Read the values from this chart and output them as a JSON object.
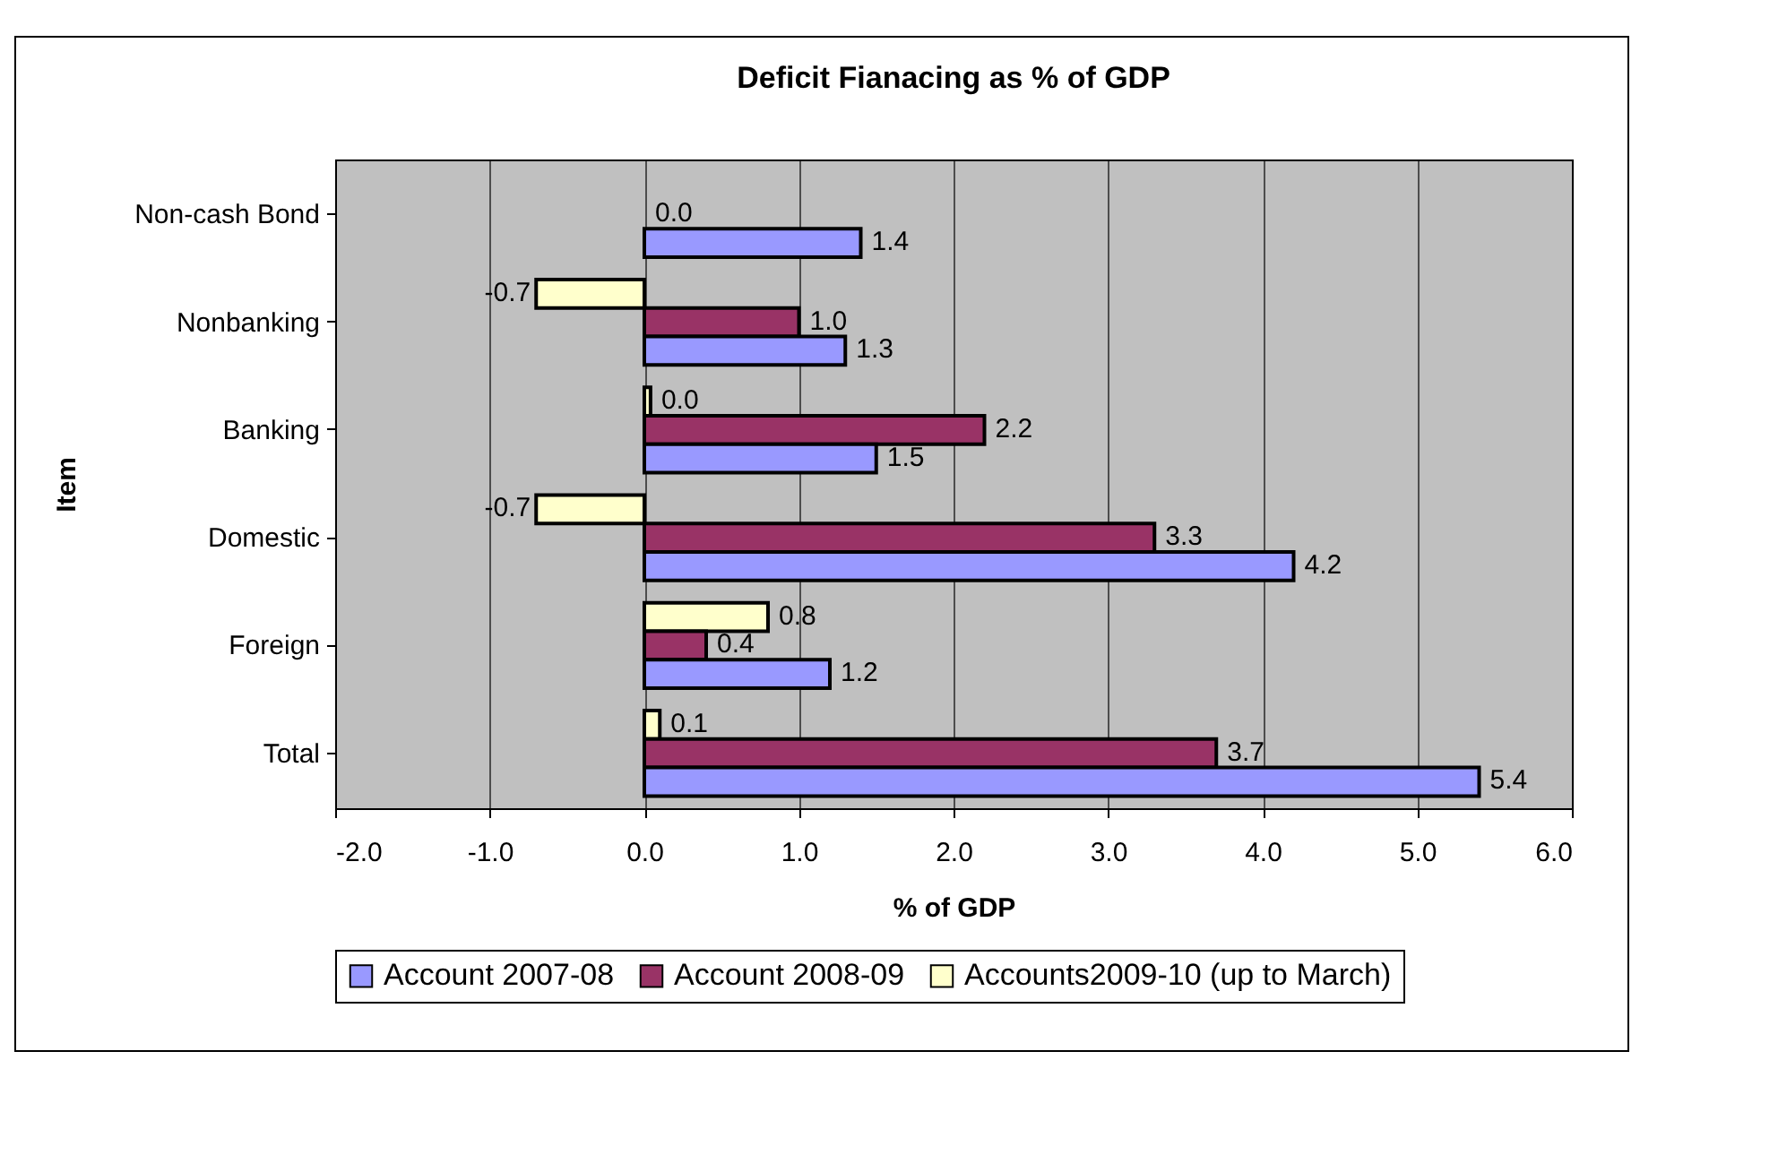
{
  "chart_data": {
    "type": "bar",
    "orientation": "horizontal",
    "title": "Deficit Fianacing as % of GDP",
    "xlabel": "% of GDP",
    "ylabel": "Item",
    "categories": [
      "Non-cash Bond",
      "Nonbanking",
      "Banking",
      "Domestic",
      "Foreign",
      "Total"
    ],
    "series": [
      {
        "name": "Accounts2009-10 (up to March)",
        "color": "#ffffcc",
        "values": [
          null,
          -0.7,
          0.04,
          -0.7,
          0.8,
          0.1
        ],
        "value_labels": [
          null,
          "-0.7",
          "0.0",
          "-0.7",
          "0.8",
          "0.1"
        ]
      },
      {
        "name": "Account 2008-09",
        "color": "#993366",
        "values": [
          0.0,
          1.0,
          2.2,
          3.3,
          0.4,
          3.7
        ],
        "value_labels": [
          "0.0",
          "1.0",
          "2.2",
          "3.3",
          "0.4",
          "3.7"
        ]
      },
      {
        "name": "Account 2007-08",
        "color": "#9999ff",
        "values": [
          1.4,
          1.3,
          1.5,
          4.2,
          1.2,
          5.4
        ],
        "value_labels": [
          "1.4",
          "1.3",
          "1.5",
          "4.2",
          "1.2",
          "5.4"
        ]
      }
    ],
    "xlim": [
      -2,
      6
    ],
    "xticks": [
      {
        "value": -2,
        "label": "-2.0"
      },
      {
        "value": -1,
        "label": "-1.0"
      },
      {
        "value": 0,
        "label": "0.0"
      },
      {
        "value": 1,
        "label": "1.0"
      },
      {
        "value": 2,
        "label": "2.0"
      },
      {
        "value": 3,
        "label": "3.0"
      },
      {
        "value": 4,
        "label": "4.0"
      },
      {
        "value": 5,
        "label": "5.0"
      },
      {
        "value": 6,
        "label": "6.0"
      }
    ],
    "grid": "x",
    "legend": "bottom"
  }
}
